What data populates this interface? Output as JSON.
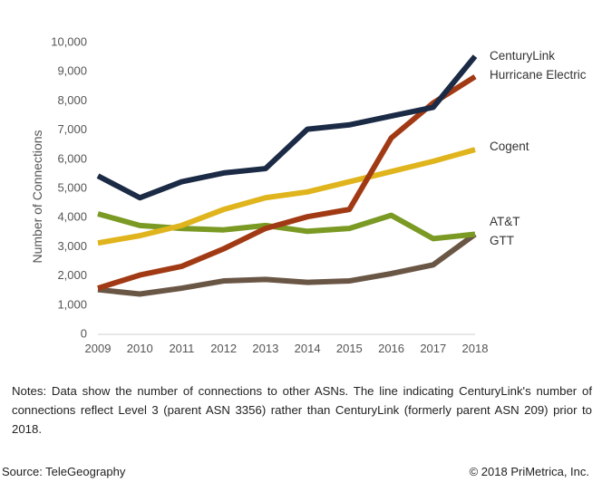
{
  "chart_data": {
    "type": "line",
    "title": "",
    "xlabel": "",
    "ylabel": "Number of Connections",
    "ylim": [
      0,
      10000
    ],
    "yticks": [
      "0",
      "1,000",
      "2,000",
      "3,000",
      "4,000",
      "5,000",
      "6,000",
      "7,000",
      "8,000",
      "9,000",
      "10,000"
    ],
    "x": [
      "2009",
      "2010",
      "2011",
      "2012",
      "2013",
      "2014",
      "2015",
      "2016",
      "2017",
      "2018"
    ],
    "grid": false,
    "legend": "right (labels at line ends)",
    "series": [
      {
        "name": "CenturyLink",
        "color": "#1b2a45",
        "values": [
          5400,
          4650,
          5200,
          5500,
          5650,
          7000,
          7150,
          7450,
          7750,
          9500
        ]
      },
      {
        "name": "Hurricane Electric",
        "color": "#a13a14",
        "values": [
          1550,
          2000,
          2300,
          2900,
          3600,
          4000,
          4250,
          6700,
          7900,
          8800
        ]
      },
      {
        "name": "Cogent",
        "color": "#e0b41c",
        "values": [
          3100,
          3350,
          3700,
          4250,
          4650,
          4850,
          5200,
          5550,
          5900,
          6300
        ]
      },
      {
        "name": "AT&T",
        "color": "#7a9a24",
        "values": [
          4100,
          3700,
          3600,
          3550,
          3700,
          3500,
          3600,
          4050,
          3250,
          3400
        ]
      },
      {
        "name": "GTT",
        "color": "#6a5645",
        "values": [
          1500,
          1350,
          1550,
          1800,
          1850,
          1750,
          1800,
          2050,
          2350,
          3400
        ]
      }
    ]
  },
  "notes": "Notes: Data show the number of connections to other ASNs. The line indicating CenturyLink's number of connections reflect Level 3 (parent ASN 3356) rather than CenturyLink (formerly parent ASN 209) prior to 2018.",
  "footer": {
    "source": "Source: TeleGeography",
    "copyright": "© 2018 PriMetrica, Inc."
  }
}
